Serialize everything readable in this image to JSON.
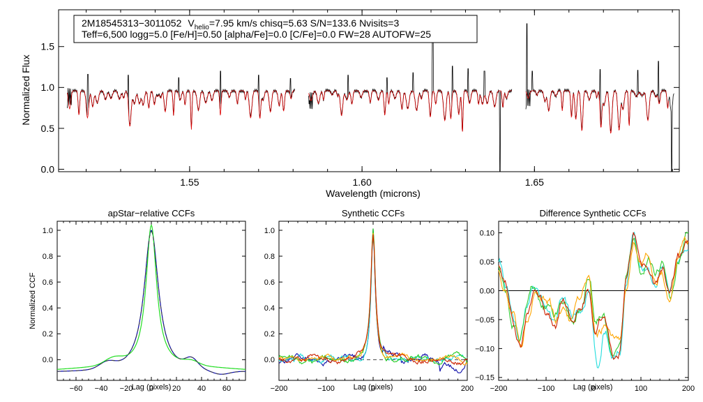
{
  "chart_data": [
    {
      "type": "line",
      "panel": "spectrum",
      "xlabel": "Wavelength (microns)",
      "ylabel": "Normalized Flux",
      "xlim": [
        1.512,
        1.692
      ],
      "ylim": [
        -0.03,
        1.95
      ],
      "xticks": [
        "1.55",
        "1.60",
        "1.65"
      ],
      "yticks": [
        "0.0",
        "0.5",
        "1.0",
        "1.5"
      ],
      "segments_microns": [
        [
          1.5145,
          1.5805
        ],
        [
          1.5845,
          1.6435
        ],
        [
          1.6475,
          1.6905
        ]
      ],
      "series": [
        {
          "name": "observed",
          "color": "#000000",
          "continuum": 0.96
        },
        {
          "name": "model",
          "color": "#dd0000",
          "continuum": 0.96
        }
      ],
      "legend": {
        "star_id": "2M18545313−3011052",
        "v_label": "V",
        "v_sub": "helio",
        "line1_rest": "=7.95 km/s  chisq=5.63  S/N=133.6  Nvisits=3",
        "line2": "Teff=6,500 logg=5.0 [Fe/H]=0.50 [alpha/Fe]=0.0 [C/Fe]=0.0 FW=28 AUTOFW=25",
        "position": "top-left"
      }
    },
    {
      "type": "line",
      "panel": "ccf-apstar",
      "title": "apStar−relative CCFs",
      "xlabel": "Lag (pixels)",
      "ylabel": "Normalized CCF",
      "xlim": [
        -75,
        75
      ],
      "ylim": [
        -0.16,
        1.07
      ],
      "xticks": [
        "−60",
        "−40",
        "−20",
        "0",
        "20",
        "40",
        "60"
      ],
      "yticks": [
        "0.0",
        "0.2",
        "0.4",
        "0.6",
        "0.8",
        "1.0"
      ],
      "series": [
        {
          "name": "visit-blue",
          "color": "#0a0aa8",
          "peak": 1.0,
          "fwhm_pixels": 14,
          "floor": -0.1
        },
        {
          "name": "visit-green",
          "color": "#22dd22",
          "peak": 1.0,
          "fwhm_pixels": 12,
          "floor": -0.08
        },
        {
          "name": "combined-dashed",
          "color": "#444444",
          "peak": 0.99,
          "fwhm_pixels": 14,
          "floor": -0.1
        }
      ]
    },
    {
      "type": "line",
      "panel": "ccf-synthetic",
      "title": "Synthetic CCFs",
      "xlabel": "Lag (pixels)",
      "xlim": [
        -200,
        200
      ],
      "ylim": [
        -0.16,
        1.07
      ],
      "xticks": [
        "−200",
        "−100",
        "0",
        "100",
        "200"
      ],
      "yticks": [
        "0.0",
        "0.2",
        "0.4",
        "0.6",
        "0.8",
        "1.0"
      ],
      "series": [
        {
          "name": "navy",
          "color": "#0a0aa8",
          "peak": 1.0
        },
        {
          "name": "cyan",
          "color": "#22dddd",
          "peak": 0.98
        },
        {
          "name": "green",
          "color": "#22cc22",
          "peak": 0.98
        },
        {
          "name": "orange",
          "color": "#ffa500",
          "peak": 0.97
        },
        {
          "name": "red",
          "color": "#cc2200",
          "peak": 0.99
        }
      ],
      "zero_line": "dashed"
    },
    {
      "type": "line",
      "panel": "ccf-difference",
      "title": "Difference Synthetic CCFs",
      "xlabel": "Lag (pixels)",
      "xlim": [
        -200,
        200
      ],
      "ylim": [
        -0.155,
        0.12
      ],
      "xticks": [
        "−200",
        "−100",
        "0",
        "100",
        "200"
      ],
      "yticks": [
        "0.10",
        "0.05",
        "0.00",
        "−0.05",
        "−0.10",
        "−0.15"
      ],
      "series": [
        {
          "name": "cyan",
          "color": "#22dddd",
          "min_near_lag": [
            10,
            -0.145
          ]
        },
        {
          "name": "green",
          "color": "#33cc33",
          "min_near_lag": [
            -150,
            -0.08
          ]
        },
        {
          "name": "orange",
          "color": "#ffa500",
          "min_near_lag": [
            -150,
            -0.09
          ]
        },
        {
          "name": "red",
          "color": "#cc2200",
          "min_near_lag": [
            50,
            -0.115
          ]
        }
      ],
      "zero_line": "solid"
    }
  ]
}
